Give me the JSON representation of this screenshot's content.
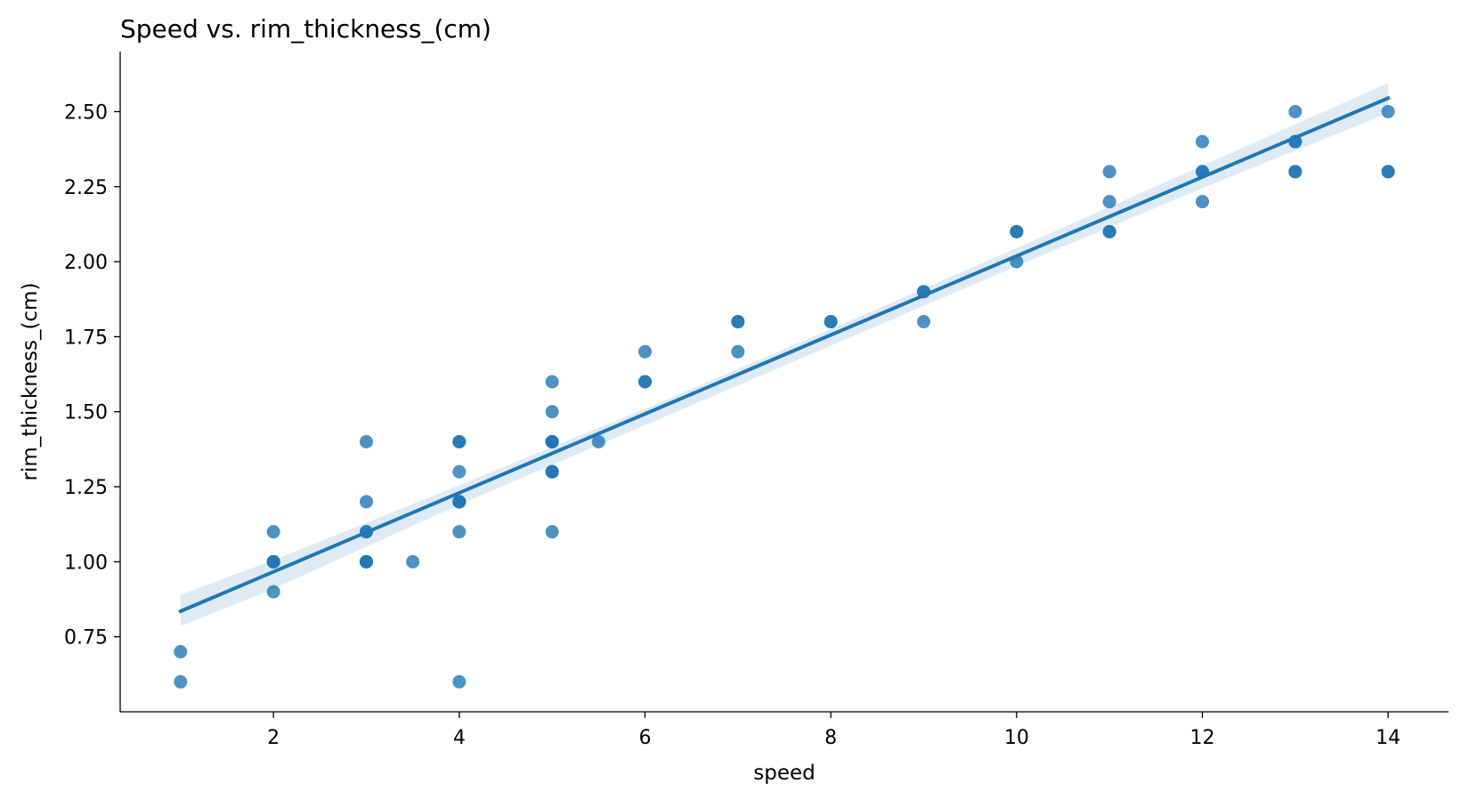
{
  "chart_data": {
    "type": "scatter",
    "title": "Speed vs. rim_thickness_(cm)",
    "xlabel": "speed",
    "ylabel": "rim_thickness_(cm)",
    "xlim": [
      0.35,
      14.65
    ],
    "ylim": [
      0.5,
      2.7
    ],
    "xticks": [
      2,
      4,
      6,
      8,
      10,
      12,
      14
    ],
    "yticks": [
      0.75,
      1.0,
      1.25,
      1.5,
      1.75,
      2.0,
      2.25,
      2.5
    ],
    "ytick_decimals": 2,
    "grid": false,
    "points": {
      "x": [
        1,
        1,
        2,
        2,
        2,
        2,
        2,
        3,
        3,
        3,
        3,
        3,
        3,
        3,
        3.5,
        4,
        4,
        4,
        4,
        4,
        4,
        4,
        4,
        5,
        5,
        5,
        5,
        5,
        5,
        5,
        5,
        5,
        5.5,
        6,
        6,
        6,
        7,
        7,
        7,
        8,
        8,
        9,
        9,
        9,
        10,
        10,
        10,
        11,
        11,
        11,
        11,
        12,
        12,
        12,
        12,
        13,
        13,
        13,
        13,
        13,
        14,
        14,
        14
      ],
      "y": [
        0.7,
        0.6,
        1.1,
        1.0,
        1.0,
        1.0,
        0.9,
        1.4,
        1.2,
        1.1,
        1.1,
        1.0,
        1.0,
        1.0,
        1.0,
        1.4,
        1.4,
        1.3,
        1.2,
        1.2,
        1.2,
        1.1,
        0.6,
        1.6,
        1.5,
        1.4,
        1.4,
        1.4,
        1.3,
        1.3,
        1.3,
        1.1,
        1.4,
        1.7,
        1.6,
        1.6,
        1.8,
        1.8,
        1.7,
        1.8,
        1.8,
        1.9,
        1.9,
        1.8,
        2.1,
        2.1,
        2.0,
        2.3,
        2.2,
        2.1,
        2.1,
        2.4,
        2.3,
        2.3,
        2.2,
        2.5,
        2.4,
        2.4,
        2.3,
        2.3,
        2.5,
        2.3,
        2.3
      ]
    },
    "regression": {
      "x": [
        1,
        14
      ],
      "y": [
        0.835,
        2.545
      ]
    },
    "confidence_band": {
      "x": [
        1,
        2,
        4,
        6,
        8,
        10,
        12,
        14
      ],
      "lower": [
        0.785,
        0.91,
        1.19,
        1.455,
        1.72,
        1.985,
        2.245,
        2.495
      ],
      "upper": [
        0.89,
        1.005,
        1.255,
        1.51,
        1.775,
        2.045,
        2.32,
        2.595
      ]
    },
    "colors": {
      "point": "#1f77b4",
      "line": "#1f77b4",
      "band": "#1f77b4"
    }
  }
}
